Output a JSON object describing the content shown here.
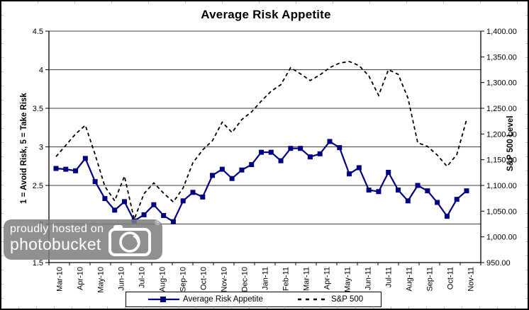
{
  "title": "Average Risk Appetite",
  "chart_data": {
    "type": "line",
    "title": "Average Risk Appetite",
    "x_labels": [
      "Mar-10",
      "Apr-10",
      "May-10",
      "Jun-10",
      "Jul-10",
      "Aug-10",
      "Sep-10",
      "Oct-10",
      "Nov-10",
      "Dec-10",
      "Jan-11",
      "Feb-11",
      "Mar-11",
      "Apr-11",
      "May-11",
      "Jun-11",
      "Jul-11",
      "Aug-11",
      "Sep-11",
      "Oct-11",
      "Nov-11"
    ],
    "left_axis": {
      "label": "1 = Avoid Risk, 5 = Take Risk",
      "min": 1.5,
      "max": 4.5,
      "ticks": [
        "4.5",
        "4",
        "3.5",
        "3",
        "2.5",
        "2",
        "1.5"
      ]
    },
    "right_axis": {
      "label": "S&P 500 Level",
      "min": 950,
      "max": 1400,
      "ticks": [
        "1,400.00",
        "1,350.00",
        "1,300.00",
        "1,250.00",
        "1,200.00",
        "1,150.00",
        "1,100.00",
        "1,050.00",
        "1,000.00",
        "950.00"
      ]
    },
    "grid": true,
    "legend_position": "bottom",
    "series": [
      {
        "name": "Average Risk Appetite",
        "axis": "left",
        "color": "#000080",
        "marker": "square",
        "line_style": "solid",
        "values": [
          2.72,
          2.71,
          2.69,
          2.85,
          2.55,
          2.33,
          2.18,
          2.29,
          2.04,
          2.12,
          2.25,
          2.11,
          2.03,
          2.3,
          2.41,
          2.35,
          2.63,
          2.71,
          2.59,
          2.7,
          2.77,
          2.93,
          2.93,
          2.82,
          2.98,
          2.98,
          2.87,
          2.91,
          3.07,
          2.99,
          2.65,
          2.73,
          2.44,
          2.42,
          2.67,
          2.44,
          2.3,
          2.5,
          2.43,
          2.28,
          2.1,
          2.32,
          2.43
        ]
      },
      {
        "name": "S&P 500",
        "axis": "right",
        "color": "#000000",
        "marker": "none",
        "line_style": "dashed",
        "values": [
          1156,
          1178,
          1200,
          1217,
          1160,
          1098,
          1070,
          1118,
          1034,
          1084,
          1105,
          1085,
          1068,
          1095,
          1144,
          1169,
          1187,
          1223,
          1203,
          1228,
          1243,
          1264,
          1283,
          1296,
          1329,
          1317,
          1304,
          1315,
          1329,
          1338,
          1341,
          1333,
          1313,
          1275,
          1325,
          1316,
          1270,
          1183,
          1176,
          1159,
          1137,
          1160,
          1228
        ]
      }
    ]
  },
  "watermark": {
    "line1": "proudly hosted on",
    "line2": "photobucket",
    "registered": "®"
  }
}
